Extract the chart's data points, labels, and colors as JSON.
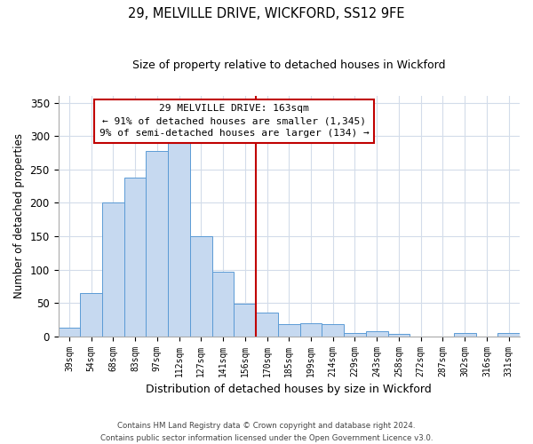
{
  "title": "29, MELVILLE DRIVE, WICKFORD, SS12 9FE",
  "subtitle": "Size of property relative to detached houses in Wickford",
  "xlabel": "Distribution of detached houses by size in Wickford",
  "ylabel": "Number of detached properties",
  "bar_labels": [
    "39sqm",
    "54sqm",
    "68sqm",
    "83sqm",
    "97sqm",
    "112sqm",
    "127sqm",
    "141sqm",
    "156sqm",
    "170sqm",
    "185sqm",
    "199sqm",
    "214sqm",
    "229sqm",
    "243sqm",
    "258sqm",
    "272sqm",
    "287sqm",
    "302sqm",
    "316sqm",
    "331sqm"
  ],
  "bar_values": [
    13,
    65,
    200,
    238,
    277,
    290,
    150,
    97,
    49,
    35,
    18,
    20,
    18,
    5,
    8,
    3,
    0,
    0,
    5,
    0,
    5
  ],
  "bar_color": "#c6d9f0",
  "bar_edge_color": "#5b9bd5",
  "vline_pos": 8.5,
  "vline_color": "#c00000",
  "ylim": [
    0,
    360
  ],
  "yticks": [
    0,
    50,
    100,
    150,
    200,
    250,
    300,
    350
  ],
  "annotation_title": "29 MELVILLE DRIVE: 163sqm",
  "annotation_line1": "← 91% of detached houses are smaller (1,345)",
  "annotation_line2": "9% of semi-detached houses are larger (134) →",
  "annotation_box_color": "#ffffff",
  "annotation_box_edge": "#c00000",
  "footer_line1": "Contains HM Land Registry data © Crown copyright and database right 2024.",
  "footer_line2": "Contains public sector information licensed under the Open Government Licence v3.0.",
  "background_color": "#ffffff",
  "grid_color": "#d3dcea"
}
